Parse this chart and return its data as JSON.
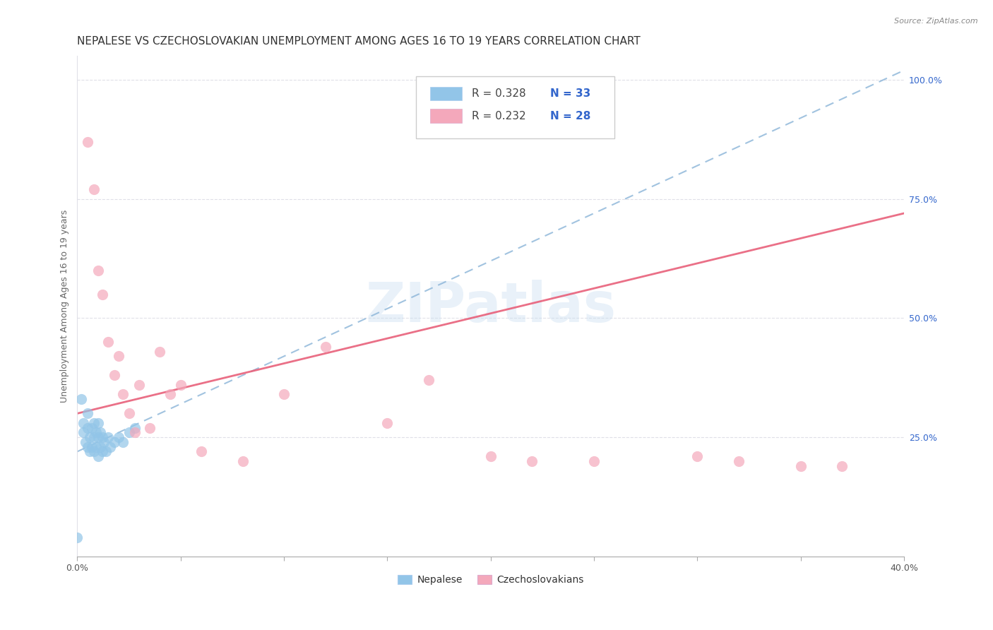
{
  "title": "NEPALESE VS CZECHOSLOVAKIAN UNEMPLOYMENT AMONG AGES 16 TO 19 YEARS CORRELATION CHART",
  "source": "Source: ZipAtlas.com",
  "ylabel": "Unemployment Among Ages 16 to 19 years",
  "xlim": [
    0.0,
    0.4
  ],
  "ylim": [
    0.0,
    1.05
  ],
  "xticks": [
    0.0,
    0.05,
    0.1,
    0.15,
    0.2,
    0.25,
    0.3,
    0.35,
    0.4
  ],
  "yticks_right": [
    0.25,
    0.5,
    0.75,
    1.0
  ],
  "yticklabels_right": [
    "25.0%",
    "50.0%",
    "75.0%",
    "100.0%"
  ],
  "legend_R1": "R = 0.328",
  "legend_N1": "N = 33",
  "legend_R2": "R = 0.232",
  "legend_N2": "N = 28",
  "blue_color": "#92c5e8",
  "pink_color": "#f4a8bb",
  "blue_line_color": "#8ab4d8",
  "pink_line_color": "#e8607a",
  "watermark": "ZIPatlas",
  "nepalese_x": [
    0.0,
    0.002,
    0.003,
    0.003,
    0.004,
    0.005,
    0.005,
    0.005,
    0.006,
    0.006,
    0.007,
    0.007,
    0.008,
    0.008,
    0.008,
    0.009,
    0.009,
    0.01,
    0.01,
    0.01,
    0.011,
    0.011,
    0.012,
    0.012,
    0.013,
    0.014,
    0.015,
    0.016,
    0.018,
    0.02,
    0.022,
    0.025,
    0.028
  ],
  "nepalese_y": [
    0.04,
    0.33,
    0.28,
    0.26,
    0.24,
    0.3,
    0.27,
    0.23,
    0.25,
    0.22,
    0.27,
    0.23,
    0.28,
    0.25,
    0.22,
    0.26,
    0.23,
    0.28,
    0.25,
    0.21,
    0.26,
    0.23,
    0.25,
    0.22,
    0.24,
    0.22,
    0.25,
    0.23,
    0.24,
    0.25,
    0.24,
    0.26,
    0.27
  ],
  "czech_x": [
    0.005,
    0.008,
    0.01,
    0.012,
    0.015,
    0.018,
    0.02,
    0.022,
    0.025,
    0.028,
    0.03,
    0.035,
    0.04,
    0.045,
    0.05,
    0.06,
    0.08,
    0.1,
    0.12,
    0.15,
    0.17,
    0.2,
    0.22,
    0.25,
    0.3,
    0.32,
    0.35,
    0.37
  ],
  "czech_y": [
    0.87,
    0.77,
    0.6,
    0.55,
    0.45,
    0.38,
    0.42,
    0.34,
    0.3,
    0.26,
    0.36,
    0.27,
    0.43,
    0.34,
    0.36,
    0.22,
    0.2,
    0.34,
    0.44,
    0.28,
    0.37,
    0.21,
    0.2,
    0.2,
    0.21,
    0.2,
    0.19,
    0.19
  ],
  "nepalese_trend_x": [
    0.0,
    0.4
  ],
  "nepalese_trend_y": [
    0.22,
    1.02
  ],
  "czech_trend_x": [
    0.0,
    0.4
  ],
  "czech_trend_y": [
    0.3,
    0.72
  ],
  "grid_color": "#e0e0e8",
  "title_fontsize": 11,
  "axis_label_fontsize": 9,
  "tick_fontsize": 9,
  "legend_fontsize": 11,
  "legend_r_color": "#444444",
  "legend_n_color": "#3366cc",
  "right_tick_color": "#3366cc"
}
